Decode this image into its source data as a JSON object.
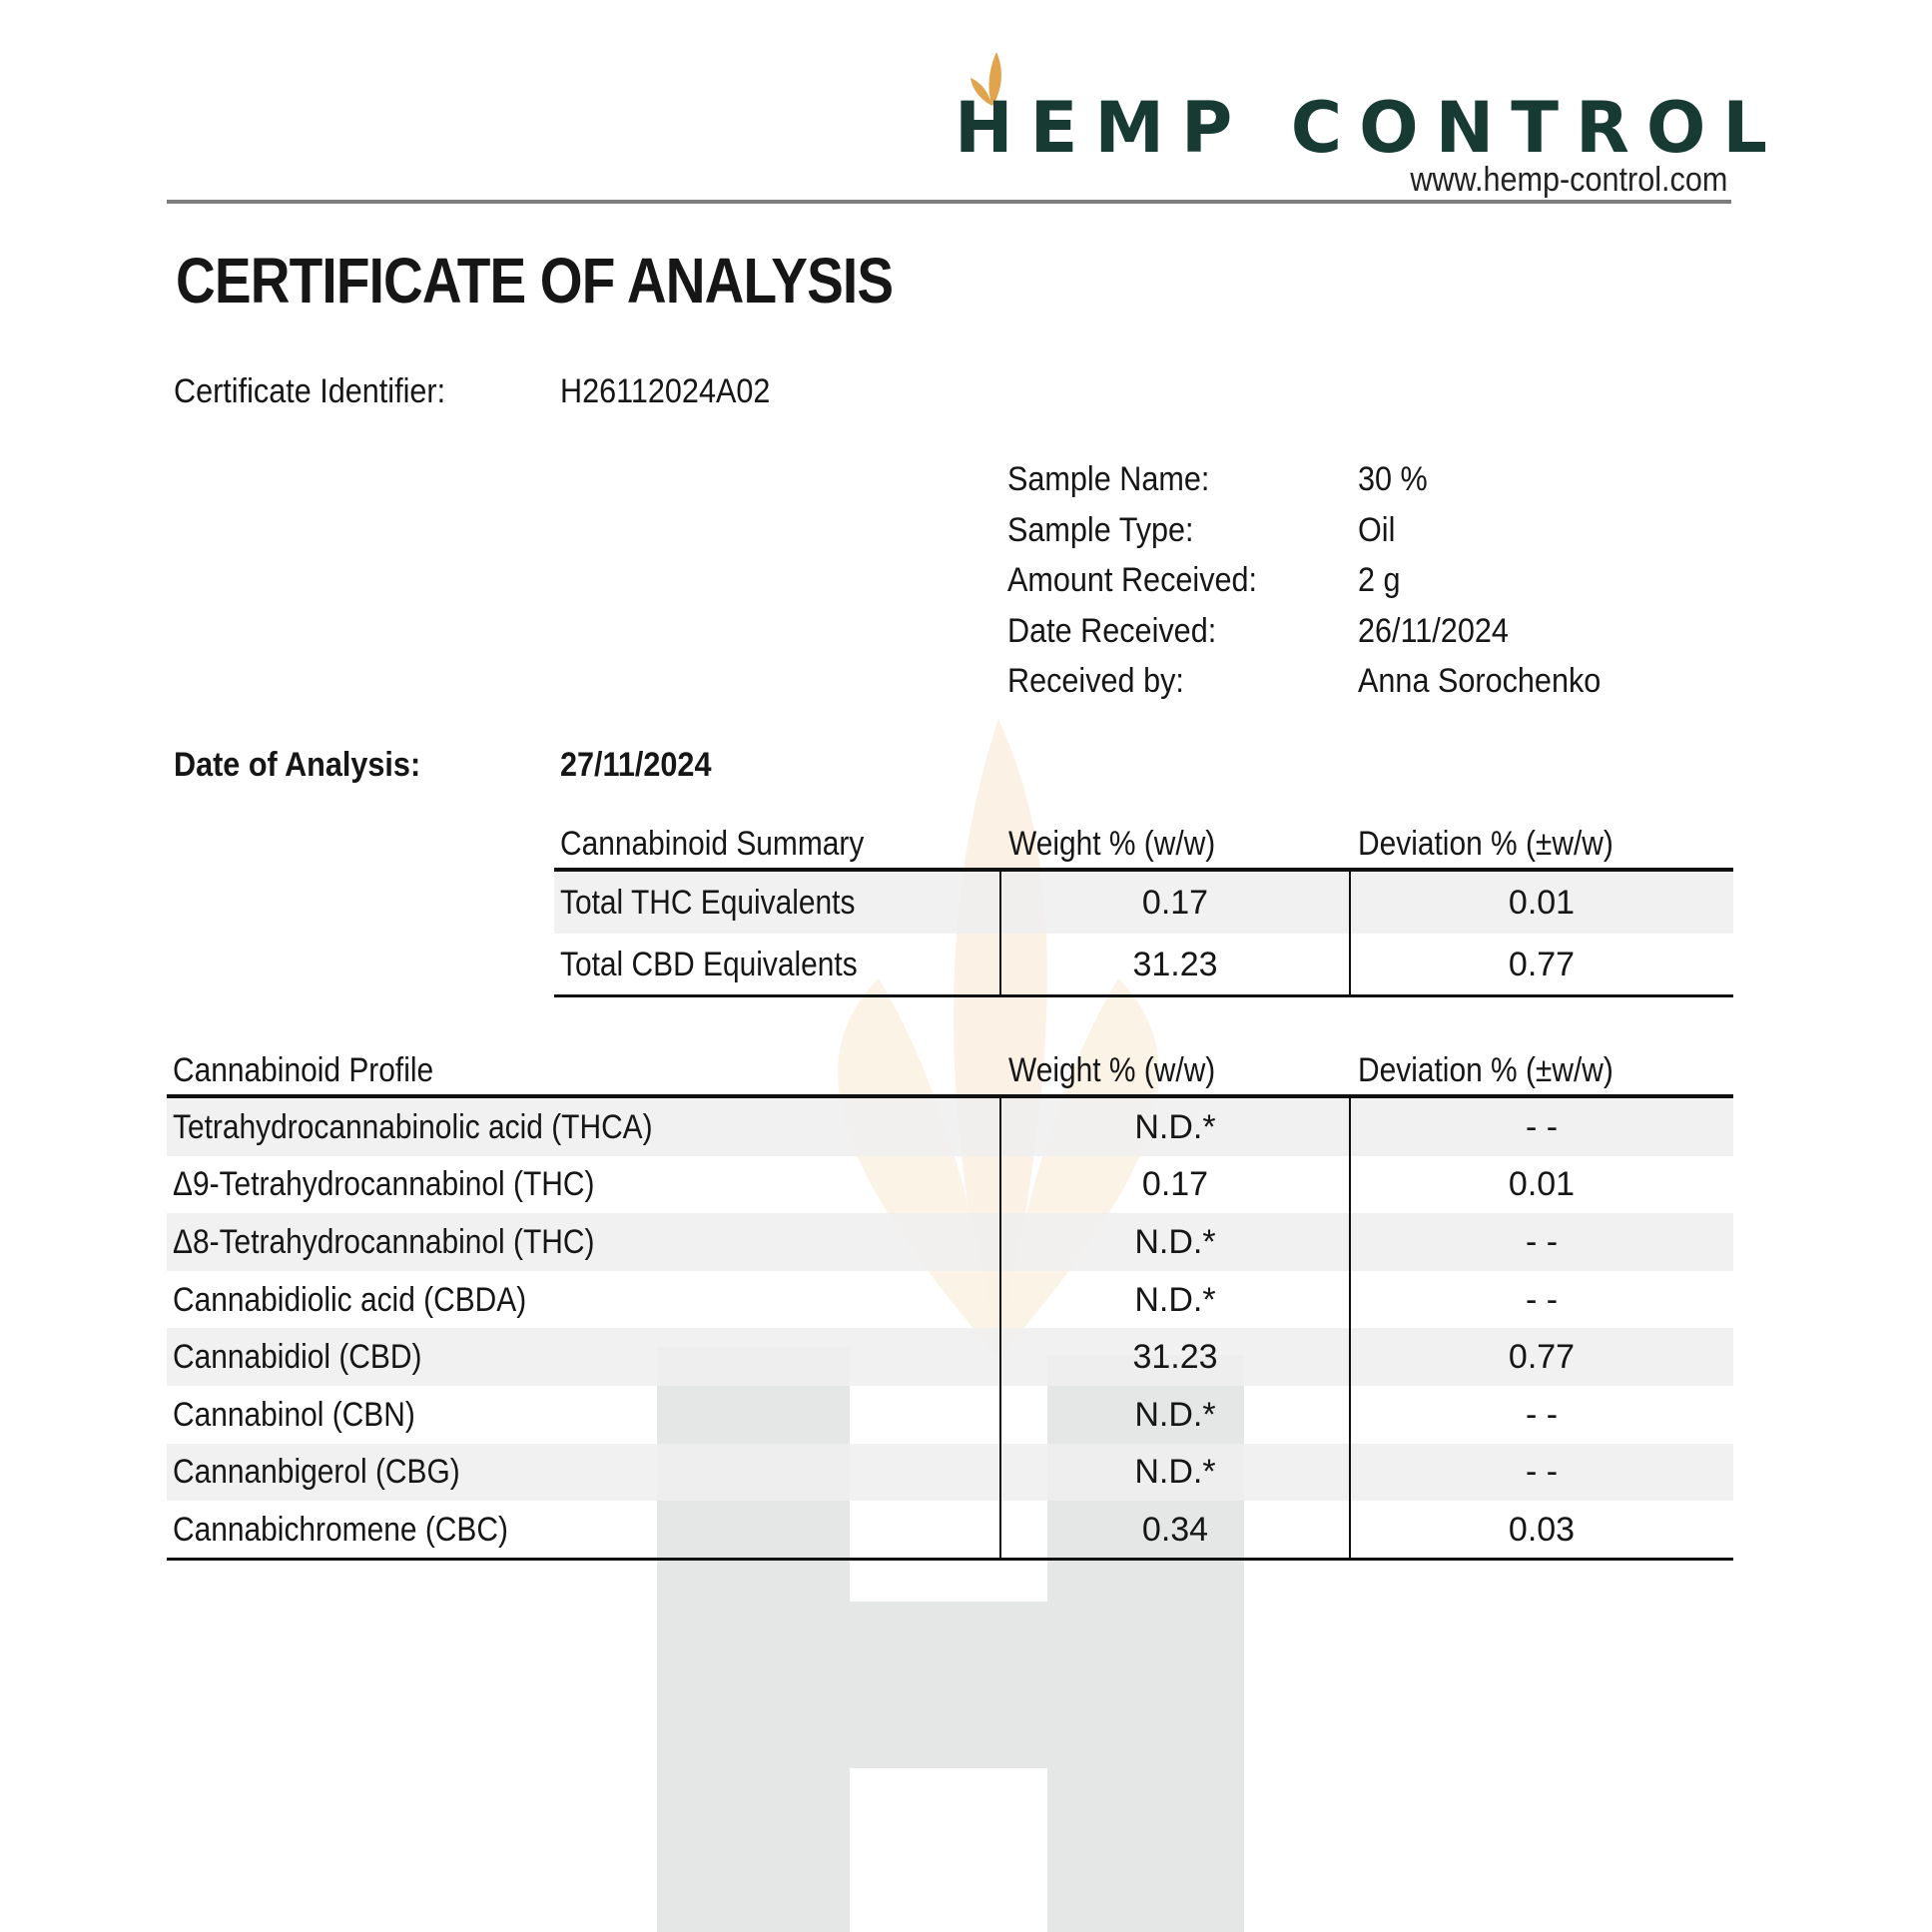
{
  "brand": {
    "name": "HEMP CONTROL",
    "url": "www.hemp-control.com",
    "text_color": "#173a33",
    "leaf_color": "#e0a34e"
  },
  "title": "CERTIFICATE OF ANALYSIS",
  "certificate": {
    "label": "Certificate Identifier:",
    "value": "H26112024A02"
  },
  "sample_info": [
    {
      "label": "Sample Name:",
      "value": "30 %"
    },
    {
      "label": "Sample Type:",
      "value": "Oil"
    },
    {
      "label": "Amount Received:",
      "value": "2 g"
    },
    {
      "label": "Date Received:",
      "value": "26/11/2024"
    },
    {
      "label": "Received by:",
      "value": "Anna Sorochenko"
    }
  ],
  "analysis_date": {
    "label": "Date of Analysis:",
    "value": "27/11/2024"
  },
  "summary": {
    "headers": [
      "Cannabinoid Summary",
      "Weight % (w/w)",
      "Deviation % (±w/w)"
    ],
    "rows": [
      [
        "Total THC Equivalents",
        "0.17",
        "0.01"
      ],
      [
        "Total CBD Equivalents",
        "31.23",
        "0.77"
      ]
    ]
  },
  "profile": {
    "headers": [
      "Cannabinoid Profile",
      "Weight % (w/w)",
      "Deviation % (±w/w)"
    ],
    "rows": [
      [
        "Tetrahydrocannabinolic acid (THCA)",
        "N.D.*",
        "- -"
      ],
      [
        "Δ9-Tetrahydrocannabinol (THC)",
        "0.17",
        "0.01"
      ],
      [
        "Δ8-Tetrahydrocannabinol (THC)",
        "N.D.*",
        "- -"
      ],
      [
        "Cannabidiolic acid (CBDA)",
        "N.D.*",
        "- -"
      ],
      [
        "Cannabidiol (CBD)",
        "31.23",
        "0.77"
      ],
      [
        "Cannabinol (CBN)",
        "N.D.*",
        "- -"
      ],
      [
        "Cannanbigerol (CBG)",
        "N.D.*",
        "- -"
      ],
      [
        "Cannabichromene (CBC)",
        "0.34",
        "0.03"
      ]
    ]
  }
}
